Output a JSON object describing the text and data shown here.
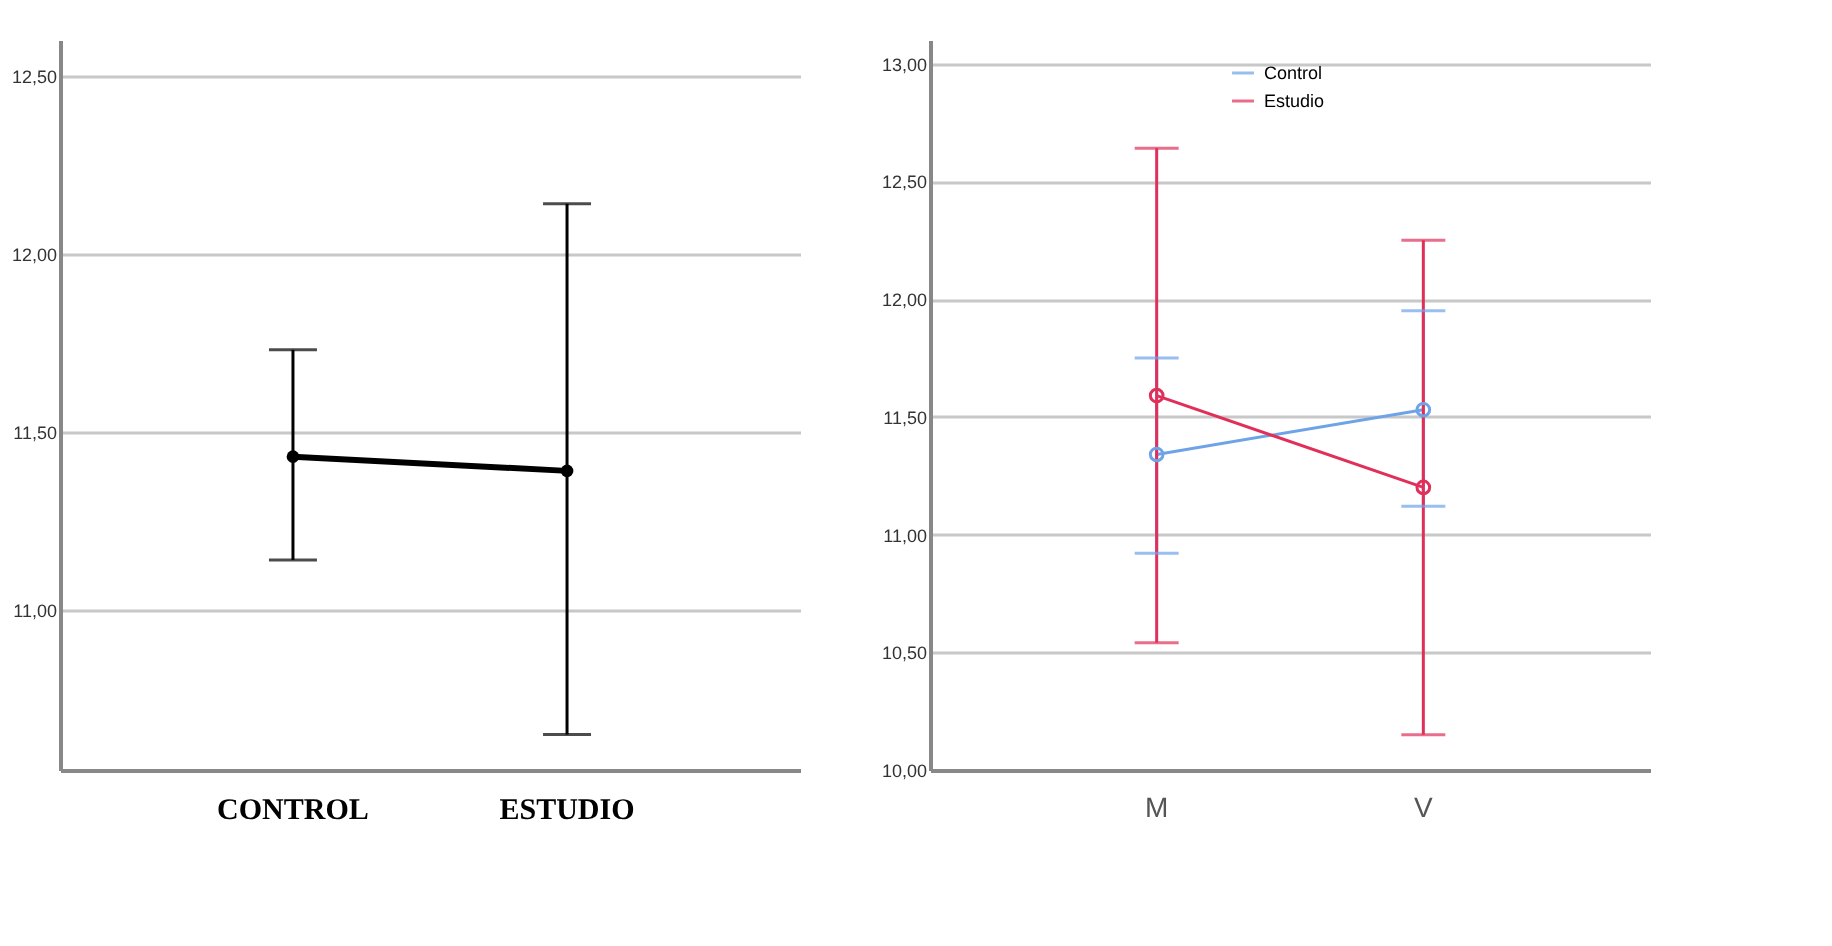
{
  "chart_data": [
    {
      "type": "line",
      "categories": [
        "CONTROL",
        "ESTUDIO"
      ],
      "series": [
        {
          "color": "#000000",
          "values": [
            11.43,
            11.39
          ],
          "errors": [
            [
              11.14,
              11.73
            ],
            [
              10.65,
              12.14
            ]
          ]
        }
      ],
      "ylim": [
        10.55,
        12.6
      ],
      "yticks": [
        {
          "value": 11,
          "label": "11,00"
        },
        {
          "value": 11.5,
          "label": "11,50"
        },
        {
          "value": 12,
          "label": "12,00"
        },
        {
          "value": 12.5,
          "label": "12,50"
        }
      ],
      "grid": "y",
      "marker": "circle",
      "line_style": "solid"
    },
    {
      "type": "line",
      "categories": [
        "M",
        "V"
      ],
      "series": [
        {
          "name": "Control",
          "color": "#6fa3e8",
          "values": [
            11.34,
            11.53
          ],
          "errors": [
            [
              10.92,
              11.75
            ],
            [
              11.12,
              11.95
            ]
          ]
        },
        {
          "name": "Estudio",
          "color": "#e0305a",
          "values": [
            11.59,
            11.2
          ],
          "errors": [
            [
              10.54,
              12.64
            ],
            [
              10.15,
              12.25
            ]
          ]
        }
      ],
      "ylim": [
        10,
        13.1
      ],
      "yticks": [
        {
          "value": 10,
          "label": "10,00"
        },
        {
          "value": 10.5,
          "label": "10,50"
        },
        {
          "value": 11,
          "label": "11,00"
        },
        {
          "value": 11.5,
          "label": "11,50"
        },
        {
          "value": 12,
          "label": "12,00"
        },
        {
          "value": 12.5,
          "label": "12,50"
        },
        {
          "value": 13,
          "label": "13,00"
        }
      ],
      "grid": "y",
      "legend": "top",
      "marker": "circle",
      "line_style": "solid"
    }
  ]
}
